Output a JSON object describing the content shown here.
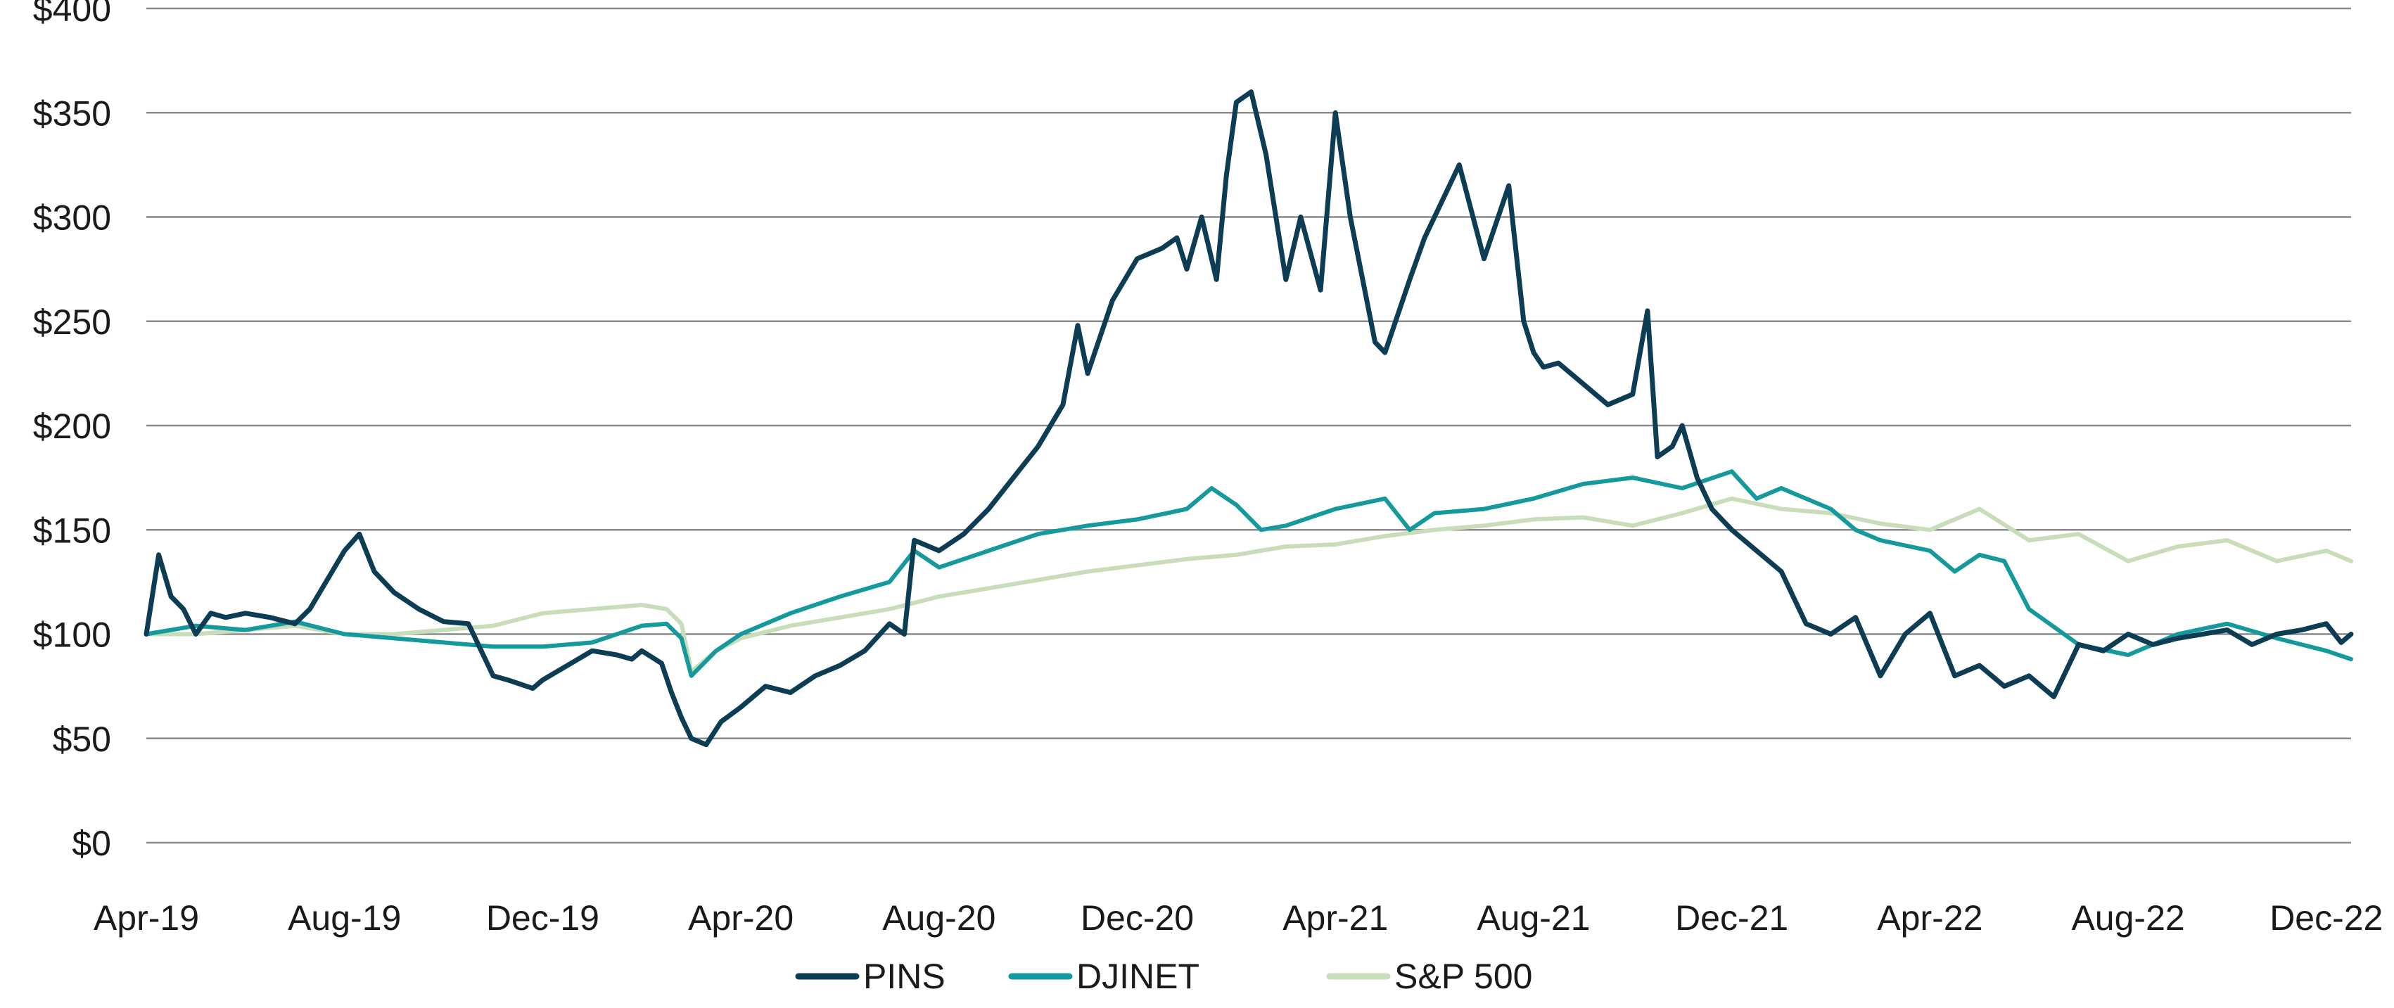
{
  "chart_data": {
    "type": "line",
    "title": "",
    "xlabel": "",
    "ylabel": "",
    "ylim": [
      0,
      400
    ],
    "yticks": [
      0,
      50,
      100,
      150,
      200,
      250,
      300,
      350,
      400
    ],
    "ytick_labels": [
      "$0",
      "$50",
      "$100",
      "$150",
      "$200",
      "$250",
      "$300",
      "$350",
      "$400"
    ],
    "xlim": [
      0,
      44.5
    ],
    "xticks": [
      0,
      4,
      8,
      12,
      16,
      20,
      24,
      28,
      32,
      36,
      40,
      44
    ],
    "xtick_labels": [
      "Apr-19",
      "Aug-19",
      "Dec-19",
      "Apr-20",
      "Aug-20",
      "Dec-20",
      "Apr-21",
      "Aug-21",
      "Dec-21",
      "Apr-22",
      "Aug-22",
      "Dec-22"
    ],
    "grid": true,
    "legend_position": "bottom-center",
    "series": [
      {
        "name": "PINS",
        "color": "#0d3d55",
        "x": [
          0,
          0.25,
          0.5,
          0.75,
          1.0,
          1.3,
          1.6,
          2.0,
          2.5,
          3.0,
          3.3,
          3.7,
          4.0,
          4.3,
          4.6,
          5.0,
          5.5,
          6.0,
          6.5,
          7.0,
          7.3,
          7.8,
          8.0,
          8.5,
          9.0,
          9.5,
          9.8,
          10.0,
          10.4,
          10.6,
          10.8,
          11.0,
          11.3,
          11.6,
          12.0,
          12.5,
          13.0,
          13.5,
          14.0,
          14.5,
          15.0,
          15.3,
          15.5,
          16.0,
          16.5,
          17.0,
          17.5,
          18.0,
          18.5,
          18.8,
          19.0,
          19.5,
          20.0,
          20.5,
          20.8,
          21.0,
          21.3,
          21.6,
          21.8,
          22.0,
          22.3,
          22.6,
          23.0,
          23.3,
          23.7,
          24.0,
          24.3,
          24.8,
          25.0,
          25.5,
          25.8,
          26.0,
          26.5,
          27.0,
          27.5,
          27.8,
          28.0,
          28.2,
          28.5,
          29.0,
          29.5,
          30.0,
          30.3,
          30.5,
          30.8,
          31.0,
          31.3,
          31.6,
          32.0,
          32.5,
          33.0,
          33.5,
          34.0,
          34.5,
          35.0,
          35.5,
          36.0,
          36.5,
          37.0,
          37.5,
          38.0,
          38.5,
          39.0,
          39.5,
          40.0,
          40.5,
          41.0,
          41.5,
          42.0,
          42.5,
          43.0,
          43.5,
          44.0,
          44.3,
          44.5
        ],
        "values": [
          100,
          138,
          118,
          112,
          100,
          110,
          108,
          110,
          108,
          105,
          112,
          128,
          140,
          148,
          130,
          120,
          112,
          106,
          105,
          80,
          78,
          74,
          78,
          85,
          92,
          90,
          88,
          92,
          86,
          72,
          60,
          50,
          47,
          58,
          65,
          75,
          72,
          80,
          85,
          92,
          105,
          100,
          145,
          140,
          148,
          160,
          175,
          190,
          210,
          248,
          225,
          260,
          280,
          285,
          290,
          275,
          300,
          270,
          320,
          355,
          360,
          330,
          270,
          300,
          265,
          350,
          300,
          240,
          235,
          270,
          290,
          300,
          325,
          280,
          315,
          250,
          235,
          228,
          230,
          220,
          210,
          215,
          255,
          185,
          190,
          200,
          175,
          160,
          150,
          140,
          130,
          105,
          100,
          108,
          80,
          100,
          110,
          80,
          85,
          75,
          80,
          70,
          95,
          92,
          100,
          95,
          98,
          100,
          102,
          95,
          100,
          102,
          105,
          96,
          100
        ]
      },
      {
        "name": "DJINET",
        "color": "#14999c",
        "x": [
          0,
          1.0,
          2.0,
          3.0,
          4.0,
          5.0,
          6.0,
          7.0,
          8.0,
          9.0,
          10.0,
          10.5,
          10.8,
          11.0,
          11.5,
          12.0,
          13.0,
          14.0,
          15.0,
          15.5,
          16.0,
          17.0,
          18.0,
          19.0,
          20.0,
          21.0,
          21.5,
          22.0,
          22.5,
          23.0,
          24.0,
          25.0,
          25.5,
          26.0,
          27.0,
          28.0,
          29.0,
          30.0,
          31.0,
          32.0,
          32.5,
          33.0,
          34.0,
          34.5,
          35.0,
          36.0,
          36.5,
          37.0,
          37.5,
          38.0,
          39.0,
          40.0,
          41.0,
          42.0,
          43.0,
          44.0,
          44.5
        ],
        "values": [
          100,
          104,
          102,
          106,
          100,
          98,
          96,
          94,
          94,
          96,
          104,
          105,
          98,
          80,
          92,
          100,
          110,
          118,
          125,
          140,
          132,
          140,
          148,
          152,
          155,
          160,
          170,
          162,
          150,
          152,
          160,
          165,
          150,
          158,
          160,
          165,
          172,
          175,
          170,
          178,
          165,
          170,
          160,
          150,
          145,
          140,
          130,
          138,
          135,
          112,
          95,
          90,
          100,
          105,
          98,
          92,
          88
        ]
      },
      {
        "name": "S&P 500",
        "color": "#c8ddb9",
        "x": [
          0,
          1.0,
          2.0,
          3.0,
          4.0,
          5.0,
          6.0,
          7.0,
          8.0,
          9.0,
          10.0,
          10.5,
          10.8,
          11.0,
          11.5,
          12.0,
          13.0,
          14.0,
          15.0,
          16.0,
          17.0,
          18.0,
          19.0,
          20.0,
          21.0,
          22.0,
          23.0,
          24.0,
          25.0,
          26.0,
          27.0,
          28.0,
          29.0,
          30.0,
          31.0,
          32.0,
          33.0,
          34.0,
          35.0,
          36.0,
          37.0,
          38.0,
          39.0,
          40.0,
          41.0,
          42.0,
          43.0,
          44.0,
          44.5
        ],
        "values": [
          100,
          100,
          102,
          104,
          100,
          100,
          102,
          104,
          110,
          112,
          114,
          112,
          105,
          82,
          92,
          98,
          104,
          108,
          112,
          118,
          122,
          126,
          130,
          133,
          136,
          138,
          142,
          143,
          147,
          150,
          152,
          155,
          156,
          152,
          158,
          165,
          160,
          158,
          153,
          150,
          160,
          145,
          148,
          135,
          142,
          145,
          135,
          140,
          135
        ]
      }
    ]
  }
}
